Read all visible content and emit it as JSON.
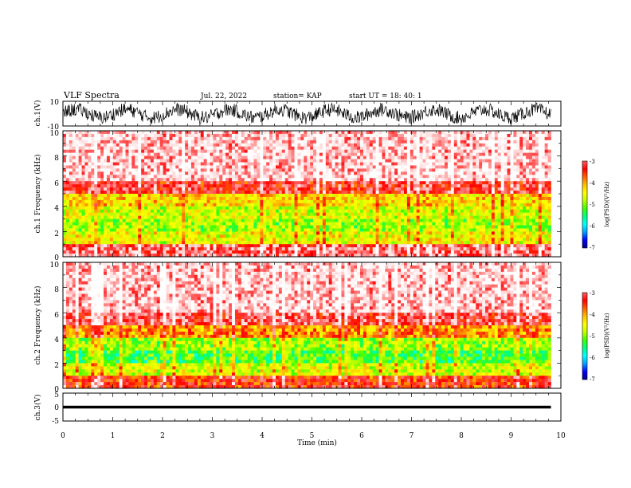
{
  "header": {
    "title": "VLF Spectra",
    "date": "Jul. 22, 2022",
    "station": "station= KAP",
    "start_ut": "start  UT =   18: 40: 1"
  },
  "colors": {
    "colormap": [
      "#000080",
      "#0000ff",
      "#00a0ff",
      "#00ffff",
      "#00ff80",
      "#40ff00",
      "#c0ff00",
      "#ffff00",
      "#ffc000",
      "#ff6000",
      "#ff0000",
      "#ff6060",
      "#ffd8d8",
      "#ffffff"
    ]
  },
  "chart_data": [
    {
      "panel": "ch1-waveform",
      "type": "line",
      "ylabel": "ch.1(V)",
      "ylim": [
        -10,
        10
      ],
      "yticks": [
        "10",
        "-10"
      ],
      "xlim": [
        0,
        10
      ],
      "description_values": "noisy waveform, amplitude roughly within -8..+8 V over 0-9.8 min"
    },
    {
      "panel": "ch1-spectrogram",
      "type": "heatmap",
      "ylabel": "ch.1 Frequency (kHz)",
      "ylim": [
        0,
        10
      ],
      "yticks": [
        "0",
        "2",
        "4",
        "6",
        "8",
        "10"
      ],
      "xlim": [
        0,
        10
      ],
      "data_end_min": 9.8,
      "colorbar": {
        "label": "log(PSD)(V²/Hz)",
        "range": [
          -7,
          -3
        ],
        "ticks": [
          "-3",
          "-4",
          "-5",
          "-6",
          "-7"
        ]
      },
      "bands": [
        {
          "f_from": 0,
          "f_to": 1,
          "log_psd": -3.6
        },
        {
          "f_from": 1,
          "f_to": 2,
          "log_psd": -4.9
        },
        {
          "f_from": 2,
          "f_to": 3,
          "log_psd": -5.2
        },
        {
          "f_from": 3,
          "f_to": 4,
          "log_psd": -5.0
        },
        {
          "f_from": 4,
          "f_to": 5,
          "log_psd": -4.7
        },
        {
          "f_from": 5,
          "f_to": 6,
          "log_psd": -3.8
        },
        {
          "f_from": 6,
          "f_to": 10,
          "log_psd": -3.3
        }
      ]
    },
    {
      "panel": "ch2-spectrogram",
      "type": "heatmap",
      "ylabel": "ch.2 Frequency (kHz)",
      "ylim": [
        0,
        10
      ],
      "yticks": [
        "0",
        "2",
        "4",
        "6",
        "8",
        "10"
      ],
      "xlim": [
        0,
        10
      ],
      "data_end_min": 9.8,
      "colorbar": {
        "label": "log(PSD)(V²/Hz)",
        "range": [
          -7,
          -3
        ],
        "ticks": [
          "-3",
          "-4",
          "-5",
          "-6",
          "-7"
        ]
      },
      "bands": [
        {
          "f_from": 0,
          "f_to": 1,
          "log_psd": -4.0
        },
        {
          "f_from": 1,
          "f_to": 2,
          "log_psd": -5.0
        },
        {
          "f_from": 2,
          "f_to": 3,
          "log_psd": -5.5
        },
        {
          "f_from": 3,
          "f_to": 4,
          "log_psd": -5.2
        },
        {
          "f_from": 4,
          "f_to": 5,
          "log_psd": -4.4
        },
        {
          "f_from": 5,
          "f_to": 6,
          "log_psd": -3.7
        },
        {
          "f_from": 6,
          "f_to": 10,
          "log_psd": -3.3
        }
      ]
    },
    {
      "panel": "ch3-waveform",
      "type": "line",
      "ylabel": "ch.3(V)",
      "ylim": [
        -5,
        5
      ],
      "yticks": [
        "5",
        "0",
        "-5"
      ],
      "xlim": [
        0,
        10
      ],
      "data_end_min": 9.8,
      "level_v": 0,
      "amplitude_v": 0.5
    }
  ],
  "xaxis": {
    "label": "Time (min)",
    "ticks": [
      "0",
      "1",
      "2",
      "3",
      "4",
      "5",
      "6",
      "7",
      "8",
      "9",
      "10"
    ]
  }
}
